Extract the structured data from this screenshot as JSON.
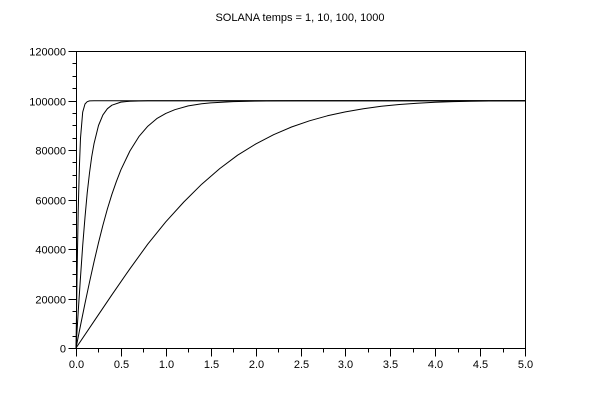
{
  "window": {
    "background": "#ffffff"
  },
  "colors": {
    "line": "#000000",
    "text": "#000000",
    "background": "#ffffff"
  },
  "chart_data": {
    "type": "line",
    "title": "SOLANA temps = 1, 10, 100, 1000",
    "xlabel": "",
    "ylabel": "",
    "xlim": [
      0,
      5
    ],
    "ylim": [
      0,
      120000
    ],
    "x_major_step": 0.5,
    "x_minor_step": 0.25,
    "y_major_step": 20000,
    "y_minor_step": 5000,
    "x_tick_labels": [
      "0.0",
      "0.5",
      "1.0",
      "1.5",
      "2.0",
      "2.5",
      "3.0",
      "3.5",
      "4.0",
      "4.5",
      "5.0"
    ],
    "y_tick_labels": [
      "0",
      "20000",
      "40000",
      "60000",
      "80000",
      "100000",
      "120000"
    ],
    "grid": false,
    "legend_position": "none",
    "saturation_level": 99900,
    "series": [
      {
        "name": "temps = 1",
        "points": [
          [
            0,
            0
          ],
          [
            0.0125,
            30200
          ],
          [
            0.025,
            55400
          ],
          [
            0.0375,
            73350
          ],
          [
            0.05,
            84800
          ],
          [
            0.075,
            95300
          ],
          [
            0.1,
            98600
          ],
          [
            0.125,
            99500
          ],
          [
            0.15,
            99840
          ],
          [
            0.2,
            99890
          ],
          [
            0.3,
            99900
          ],
          [
            0.5,
            99900
          ],
          [
            0.75,
            99900
          ],
          [
            1,
            99900
          ],
          [
            1.5,
            99900
          ],
          [
            2,
            99900
          ],
          [
            2.5,
            99900
          ],
          [
            3,
            99900
          ],
          [
            3.5,
            99900
          ],
          [
            4,
            99900
          ],
          [
            4.5,
            99900
          ],
          [
            5,
            99900
          ]
        ]
      },
      {
        "name": "temps = 10",
        "points": [
          [
            0,
            0
          ],
          [
            0.025,
            14600
          ],
          [
            0.05,
            28600
          ],
          [
            0.075,
            41400
          ],
          [
            0.1,
            52800
          ],
          [
            0.125,
            62590
          ],
          [
            0.15,
            70700
          ],
          [
            0.175,
            77250
          ],
          [
            0.2,
            82500
          ],
          [
            0.25,
            89900
          ],
          [
            0.3,
            94200
          ],
          [
            0.35,
            96700
          ],
          [
            0.4,
            98100
          ],
          [
            0.5,
            99350
          ],
          [
            0.6,
            99730
          ],
          [
            0.8,
            99870
          ],
          [
            1,
            99890
          ],
          [
            1.5,
            99900
          ],
          [
            2,
            99900
          ],
          [
            2.5,
            99900
          ],
          [
            3,
            99900
          ],
          [
            3.5,
            99900
          ],
          [
            4,
            99900
          ],
          [
            4.5,
            99900
          ],
          [
            5,
            99900
          ]
        ]
      },
      {
        "name": "temps = 100",
        "points": [
          [
            0,
            0
          ],
          [
            0.05,
            9100
          ],
          [
            0.1,
            18000
          ],
          [
            0.15,
            26600
          ],
          [
            0.2,
            34800
          ],
          [
            0.25,
            42500
          ],
          [
            0.3,
            49600
          ],
          [
            0.35,
            56200
          ],
          [
            0.4,
            62100
          ],
          [
            0.45,
            67300
          ],
          [
            0.5,
            72000
          ],
          [
            0.6,
            79600
          ],
          [
            0.7,
            85400
          ],
          [
            0.8,
            89600
          ],
          [
            0.9,
            92700
          ],
          [
            1,
            94800
          ],
          [
            1.1,
            96300
          ],
          [
            1.25,
            97800
          ],
          [
            1.4,
            98700
          ],
          [
            1.5,
            99050
          ],
          [
            1.75,
            99560
          ],
          [
            2,
            99760
          ],
          [
            2.25,
            99830
          ],
          [
            2.5,
            99870
          ],
          [
            3,
            99890
          ],
          [
            3.5,
            99900
          ],
          [
            4,
            99900
          ],
          [
            4.5,
            99900
          ],
          [
            5,
            99900
          ]
        ]
      },
      {
        "name": "temps = 1000",
        "points": [
          [
            0,
            0
          ],
          [
            0.2,
            10800
          ],
          [
            0.4,
            21500
          ],
          [
            0.6,
            32000
          ],
          [
            0.8,
            42000
          ],
          [
            1,
            51000
          ],
          [
            1.2,
            59000
          ],
          [
            1.4,
            66200
          ],
          [
            1.6,
            72500
          ],
          [
            1.8,
            77900
          ],
          [
            2,
            82400
          ],
          [
            2.2,
            86200
          ],
          [
            2.4,
            89300
          ],
          [
            2.6,
            91800
          ],
          [
            2.8,
            93800
          ],
          [
            3,
            95400
          ],
          [
            3.2,
            96700
          ],
          [
            3.4,
            97700
          ],
          [
            3.6,
            98400
          ],
          [
            3.8,
            98900
          ],
          [
            4,
            99300
          ],
          [
            4.2,
            99550
          ],
          [
            4.4,
            99700
          ],
          [
            4.6,
            99780
          ],
          [
            4.8,
            99830
          ],
          [
            5,
            99860
          ]
        ]
      }
    ]
  }
}
